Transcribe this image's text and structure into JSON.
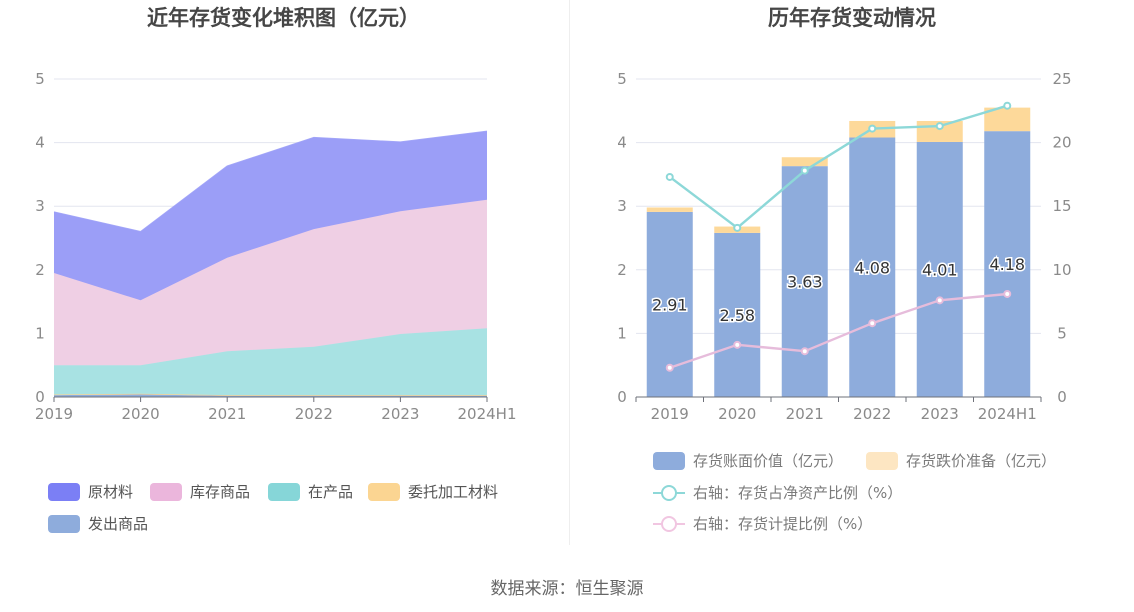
{
  "left": {
    "title": "近年存货变化堆积图（亿元）",
    "legend": [
      {
        "name": "原材料",
        "color": "#7b7ff5"
      },
      {
        "name": "库存商品",
        "color": "#ebb6dc"
      },
      {
        "name": "在产品",
        "color": "#86d6d8"
      },
      {
        "name": "委托加工材料",
        "color": "#fbd592"
      },
      {
        "name": "发出商品",
        "color": "#8eacdc"
      }
    ]
  },
  "right": {
    "title": "历年存货变动情况",
    "legend": [
      {
        "name": "存货账面价值（亿元）",
        "color": "#8eacdc",
        "kind": "bar"
      },
      {
        "name": "存货跌价准备（亿元）",
        "color": "#fde6c2",
        "kind": "bar"
      },
      {
        "name": "右轴：存货占净资产比例（%）",
        "color": "#8dd8d8",
        "kind": "line"
      },
      {
        "name": "右轴：存货计提比例（%）",
        "color": "#f1c6e1",
        "kind": "line"
      }
    ]
  },
  "source": "数据来源：恒生聚源",
  "chart_data": [
    {
      "type": "area",
      "stacked": true,
      "title": "近年存货变化堆积图（亿元）",
      "categories": [
        "2019",
        "2020",
        "2021",
        "2022",
        "2023",
        "2024H1"
      ],
      "ylim": [
        0,
        5
      ],
      "yticks": [
        0,
        1,
        2,
        3,
        4,
        5
      ],
      "series": [
        {
          "name": "发出商品",
          "color": "#8eacdc",
          "values": [
            0.03,
            0.04,
            0.02,
            0.02,
            0.02,
            0.02
          ]
        },
        {
          "name": "委托加工材料",
          "color": "#fbd592",
          "values": [
            0.01,
            0.01,
            0.01,
            0.01,
            0.01,
            0.01
          ]
        },
        {
          "name": "在产品",
          "color": "#a8e2e3",
          "values": [
            0.46,
            0.45,
            0.69,
            0.76,
            0.96,
            1.05
          ]
        },
        {
          "name": "库存商品",
          "color": "#efcfe4",
          "values": [
            1.45,
            1.02,
            1.47,
            1.85,
            1.93,
            2.02
          ]
        },
        {
          "name": "原材料",
          "color": "#9b9ef7",
          "values": [
            0.96,
            1.08,
            1.44,
            1.44,
            1.09,
            1.08
          ]
        }
      ]
    },
    {
      "type": "bar",
      "stacked": true,
      "title": "历年存货变动情况",
      "categories": [
        "2019",
        "2020",
        "2021",
        "2022",
        "2023",
        "2024H1"
      ],
      "ylim": [
        0,
        5
      ],
      "yticks": [
        0,
        1,
        2,
        3,
        4,
        5
      ],
      "y2lim": [
        0,
        25
      ],
      "y2ticks": [
        0,
        5,
        10,
        15,
        20,
        25
      ],
      "series": [
        {
          "name": "存货账面价值（亿元）",
          "axis": "left",
          "color": "#8eacdc",
          "values": [
            2.91,
            2.58,
            3.63,
            4.08,
            4.01,
            4.18
          ],
          "labels": [
            "2.91",
            "2.58",
            "3.63",
            "4.08",
            "4.01",
            "4.18"
          ]
        },
        {
          "name": "存货跌价准备（亿元）",
          "axis": "left",
          "color": "#fdd99a",
          "values": [
            0.07,
            0.1,
            0.14,
            0.26,
            0.33,
            0.37
          ]
        },
        {
          "name": "右轴：存货占净资产比例（%）",
          "axis": "right",
          "type": "line",
          "color": "#8dd8d8",
          "values": [
            17.3,
            13.3,
            17.8,
            21.1,
            21.3,
            22.9
          ]
        },
        {
          "name": "右轴：存货计提比例（%）",
          "axis": "right",
          "type": "line",
          "color": "#e6bcdb",
          "values": [
            2.3,
            4.1,
            3.6,
            5.8,
            7.6,
            8.1
          ]
        }
      ]
    }
  ]
}
